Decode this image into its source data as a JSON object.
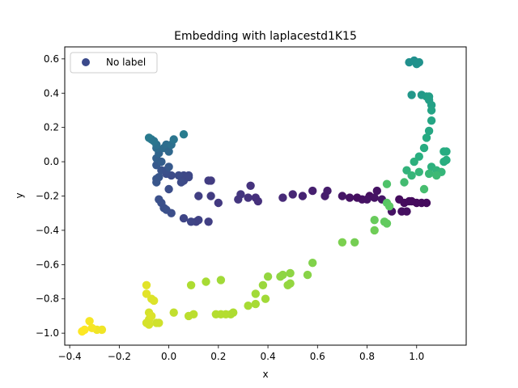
{
  "chart_data": {
    "type": "scatter",
    "title": "Embedding with laplacestd1K15",
    "xlabel": "x",
    "ylabel": "y",
    "xlim": [
      -0.42,
      1.2
    ],
    "ylim": [
      -1.07,
      0.67
    ],
    "xticks": [
      -0.4,
      -0.2,
      0.0,
      0.2,
      0.4,
      0.6,
      0.8,
      1.0
    ],
    "xtick_labels": [
      "−0.4",
      "−0.2",
      "0.0",
      "0.2",
      "0.4",
      "0.6",
      "0.8",
      "1.0"
    ],
    "yticks": [
      -1.0,
      -0.8,
      -0.6,
      -0.4,
      -0.2,
      0.0,
      0.2,
      0.4,
      0.6
    ],
    "ytick_labels": [
      "−1.0",
      "−0.8",
      "−0.6",
      "−0.4",
      "−0.2",
      "0.0",
      "0.2",
      "0.4",
      "0.6"
    ],
    "legend": {
      "label": "No label",
      "color": "#3b4a8b",
      "placement": "upper-left"
    },
    "colormap": "viridis",
    "series": [
      {
        "name": "No label",
        "points": [
          [
            0.81,
            -0.2,
            0.04
          ],
          [
            0.83,
            -0.21,
            0.05
          ],
          [
            0.86,
            -0.22,
            0.06
          ],
          [
            0.78,
            -0.22,
            0.05
          ],
          [
            0.76,
            -0.21,
            0.04
          ],
          [
            0.84,
            -0.17,
            0.05
          ],
          [
            0.95,
            -0.24,
            0.03
          ],
          [
            0.97,
            -0.23,
            0.03
          ],
          [
            1.0,
            -0.24,
            0.03
          ],
          [
            1.02,
            -0.24,
            0.03
          ],
          [
            1.04,
            -0.24,
            0.03
          ],
          [
            0.93,
            -0.22,
            0.03
          ],
          [
            0.94,
            -0.29,
            0.04
          ],
          [
            0.9,
            -0.29,
            0.05
          ],
          [
            0.96,
            -0.29,
            0.04
          ],
          [
            0.98,
            -0.23,
            0.03
          ],
          [
            0.8,
            -0.22,
            0.05
          ],
          [
            0.73,
            -0.21,
            0.05
          ],
          [
            0.7,
            -0.2,
            0.06
          ],
          [
            0.64,
            -0.17,
            0.08
          ],
          [
            0.63,
            -0.2,
            0.08
          ],
          [
            0.58,
            -0.17,
            0.09
          ],
          [
            0.54,
            -0.2,
            0.1
          ],
          [
            0.5,
            -0.19,
            0.11
          ],
          [
            0.46,
            -0.21,
            0.12
          ],
          [
            0.36,
            -0.23,
            0.14
          ],
          [
            0.35,
            -0.21,
            0.14
          ],
          [
            0.32,
            -0.21,
            0.15
          ],
          [
            0.33,
            -0.14,
            0.15
          ],
          [
            0.29,
            -0.19,
            0.16
          ],
          [
            0.28,
            -0.22,
            0.16
          ],
          [
            0.2,
            -0.24,
            0.17
          ],
          [
            0.17,
            -0.2,
            0.18
          ],
          [
            0.17,
            -0.11,
            0.18
          ],
          [
            0.16,
            -0.11,
            0.18
          ],
          [
            0.12,
            -0.2,
            0.19
          ],
          [
            0.16,
            -0.35,
            0.19
          ],
          [
            0.12,
            -0.34,
            0.2
          ],
          [
            0.11,
            -0.35,
            0.2
          ],
          [
            0.09,
            -0.35,
            0.21
          ],
          [
            0.06,
            -0.33,
            0.21
          ],
          [
            0.08,
            -0.09,
            0.22
          ],
          [
            0.06,
            -0.08,
            0.22
          ],
          [
            0.04,
            -0.08,
            0.23
          ],
          [
            0.06,
            -0.11,
            0.22
          ],
          [
            0.01,
            -0.08,
            0.23
          ],
          [
            -0.01,
            -0.07,
            0.24
          ],
          [
            0.05,
            -0.12,
            0.23
          ],
          [
            0.0,
            -0.16,
            0.24
          ],
          [
            -0.04,
            -0.22,
            0.25
          ],
          [
            -0.03,
            -0.24,
            0.25
          ],
          [
            -0.02,
            -0.27,
            0.25
          ],
          [
            -0.01,
            -0.28,
            0.25
          ],
          [
            0.01,
            -0.3,
            0.24
          ],
          [
            -0.03,
            -0.05,
            0.26
          ],
          [
            -0.04,
            -0.09,
            0.27
          ],
          [
            -0.05,
            -0.12,
            0.27
          ],
          [
            -0.05,
            -0.1,
            0.27
          ],
          [
            0.08,
            -0.08,
            0.22
          ],
          [
            -0.01,
            -0.05,
            0.25
          ],
          [
            -0.05,
            -0.02,
            0.28
          ],
          [
            -0.05,
            0.02,
            0.31
          ],
          [
            -0.04,
            0.05,
            0.33
          ],
          [
            -0.05,
            0.08,
            0.35
          ],
          [
            -0.05,
            0.1,
            0.37
          ],
          [
            -0.02,
            0.08,
            0.35
          ],
          [
            -0.01,
            0.1,
            0.36
          ],
          [
            0.0,
            0.06,
            0.34
          ],
          [
            0.01,
            0.1,
            0.37
          ],
          [
            0.02,
            0.13,
            0.39
          ],
          [
            -0.07,
            0.13,
            0.4
          ],
          [
            -0.08,
            0.14,
            0.41
          ],
          [
            -0.06,
            0.12,
            0.39
          ],
          [
            0.06,
            0.16,
            0.42
          ],
          [
            -0.03,
            0.0,
            0.3
          ],
          [
            0.0,
            -0.03,
            0.28
          ],
          [
            0.97,
            0.58,
            0.5
          ],
          [
            0.99,
            0.59,
            0.5
          ],
          [
            1.0,
            0.57,
            0.51
          ],
          [
            1.01,
            0.58,
            0.51
          ],
          [
            0.98,
            0.39,
            0.53
          ],
          [
            1.02,
            0.39,
            0.54
          ],
          [
            1.04,
            0.38,
            0.55
          ],
          [
            1.05,
            0.38,
            0.56
          ],
          [
            1.05,
            0.36,
            0.56
          ],
          [
            1.06,
            0.33,
            0.57
          ],
          [
            1.06,
            0.3,
            0.58
          ],
          [
            1.06,
            0.24,
            0.59
          ],
          [
            1.05,
            0.18,
            0.6
          ],
          [
            1.04,
            0.14,
            0.61
          ],
          [
            1.03,
            0.08,
            0.62
          ],
          [
            1.01,
            0.03,
            0.63
          ],
          [
            0.99,
            0.0,
            0.64
          ],
          [
            0.96,
            -0.05,
            0.65
          ],
          [
            0.98,
            -0.08,
            0.66
          ],
          [
            1.01,
            -0.06,
            0.66
          ],
          [
            1.06,
            -0.03,
            0.64
          ],
          [
            1.08,
            -0.05,
            0.65
          ],
          [
            1.1,
            -0.06,
            0.66
          ],
          [
            1.12,
            0.01,
            0.63
          ],
          [
            1.11,
            0.0,
            0.63
          ],
          [
            1.11,
            0.06,
            0.62
          ],
          [
            1.12,
            0.06,
            0.62
          ],
          [
            1.05,
            -0.07,
            0.67
          ],
          [
            1.08,
            -0.08,
            0.68
          ],
          [
            1.03,
            -0.16,
            0.7
          ],
          [
            0.95,
            -0.12,
            0.69
          ],
          [
            0.88,
            -0.13,
            0.72
          ],
          [
            0.88,
            -0.24,
            0.74
          ],
          [
            0.89,
            -0.26,
            0.75
          ],
          [
            0.87,
            -0.35,
            0.76
          ],
          [
            0.88,
            -0.36,
            0.76
          ],
          [
            0.83,
            -0.34,
            0.77
          ],
          [
            0.83,
            -0.4,
            0.78
          ],
          [
            0.75,
            -0.47,
            0.79
          ],
          [
            0.7,
            -0.47,
            0.8
          ],
          [
            0.58,
            -0.59,
            0.81
          ],
          [
            0.56,
            -0.66,
            0.82
          ],
          [
            0.49,
            -0.65,
            0.83
          ],
          [
            0.46,
            -0.66,
            0.83
          ],
          [
            0.45,
            -0.67,
            0.83
          ],
          [
            0.4,
            -0.67,
            0.84
          ],
          [
            0.38,
            -0.72,
            0.85
          ],
          [
            0.49,
            -0.71,
            0.84
          ],
          [
            0.48,
            -0.72,
            0.84
          ],
          [
            0.35,
            -0.77,
            0.86
          ],
          [
            0.35,
            -0.83,
            0.87
          ],
          [
            0.39,
            -0.8,
            0.86
          ],
          [
            0.32,
            -0.84,
            0.87
          ],
          [
            0.26,
            -0.88,
            0.88
          ],
          [
            0.25,
            -0.89,
            0.88
          ],
          [
            0.23,
            -0.89,
            0.89
          ],
          [
            0.21,
            -0.89,
            0.89
          ],
          [
            0.19,
            -0.89,
            0.89
          ],
          [
            0.21,
            -0.69,
            0.86
          ],
          [
            0.15,
            -0.7,
            0.87
          ],
          [
            0.09,
            -0.72,
            0.88
          ],
          [
            0.1,
            -0.89,
            0.9
          ],
          [
            0.08,
            -0.9,
            0.9
          ],
          [
            0.02,
            -0.88,
            0.91
          ],
          [
            -0.04,
            -0.94,
            0.93
          ],
          [
            -0.05,
            -0.94,
            0.93
          ],
          [
            -0.08,
            -0.92,
            0.94
          ],
          [
            -0.09,
            -0.94,
            0.94
          ],
          [
            -0.08,
            -0.95,
            0.94
          ],
          [
            -0.08,
            -0.88,
            0.94
          ],
          [
            -0.07,
            -0.9,
            0.95
          ],
          [
            -0.06,
            -0.81,
            0.95
          ],
          [
            -0.07,
            -0.8,
            0.95
          ],
          [
            -0.09,
            -0.77,
            0.96
          ],
          [
            -0.09,
            -0.72,
            0.96
          ],
          [
            -0.27,
            -0.98,
            0.98
          ],
          [
            -0.29,
            -0.98,
            0.98
          ],
          [
            -0.31,
            -0.97,
            0.99
          ],
          [
            -0.32,
            -0.93,
            0.99
          ],
          [
            -0.34,
            -0.98,
            1.0
          ],
          [
            -0.35,
            -0.99,
            1.0
          ]
        ]
      }
    ]
  }
}
